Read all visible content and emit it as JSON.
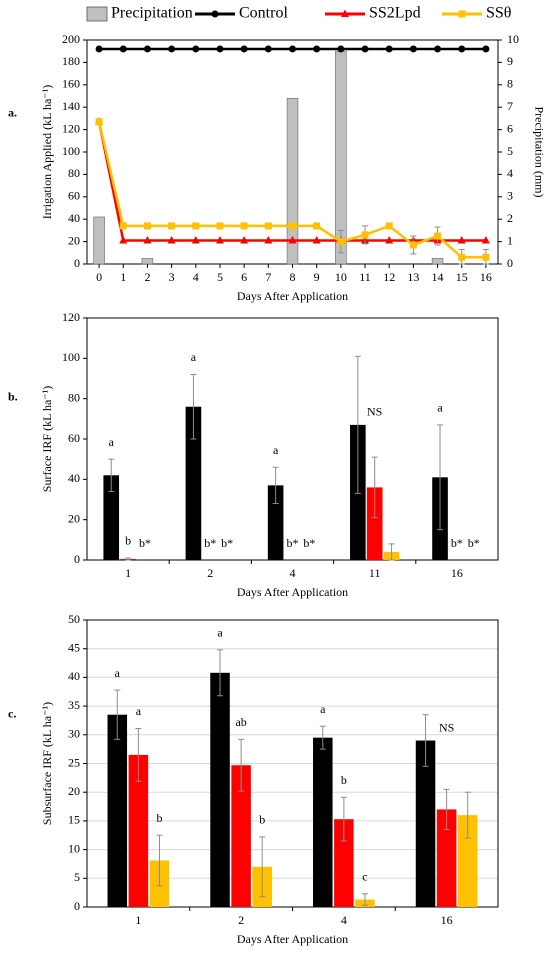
{
  "chart_data": [
    {
      "type": "line",
      "panel_label": "a.",
      "ylabel": "Irrigation Applied (kL ha⁻¹)",
      "y2label": "Precipitation (mm)",
      "xlabel": "Days After Application",
      "categories": [
        0,
        1,
        2,
        3,
        4,
        5,
        6,
        7,
        8,
        9,
        10,
        11,
        12,
        13,
        14,
        15,
        16
      ],
      "ylim": [
        0,
        200
      ],
      "yticks": [
        0,
        20,
        40,
        60,
        80,
        100,
        120,
        140,
        160,
        180,
        200
      ],
      "y2lim": [
        0,
        10
      ],
      "y2ticks": [
        0,
        1,
        2,
        3,
        4,
        5,
        6,
        7,
        8,
        9,
        10
      ],
      "series": [
        {
          "name": "Precipitation",
          "type": "bar",
          "axis": "y2",
          "color": "#bfbfbf",
          "values": [
            2.1,
            0,
            0.25,
            0,
            0,
            0,
            0,
            0,
            7.4,
            0,
            9.5,
            0,
            0,
            0,
            0.25,
            0,
            0
          ]
        },
        {
          "name": "Control",
          "type": "line",
          "marker": "circle",
          "color": "#000000",
          "values": [
            192,
            192,
            192,
            192,
            192,
            192,
            192,
            192,
            192,
            192,
            192,
            192,
            192,
            192,
            192,
            192,
            192
          ]
        },
        {
          "name": "SS2Lpd",
          "type": "line",
          "marker": "triangle",
          "color": "#ff0000",
          "values": [
            127,
            21,
            21,
            21,
            21,
            21,
            21,
            21,
            21,
            21,
            21,
            21,
            21,
            21,
            21,
            21,
            21
          ]
        },
        {
          "name": "SSθ",
          "type": "line",
          "marker": "square",
          "color": "#ffc000",
          "values": [
            127,
            34,
            34,
            34,
            34,
            34,
            34,
            34,
            34,
            34,
            20,
            26,
            34,
            17,
            25,
            6,
            6
          ],
          "errors": [
            null,
            null,
            null,
            null,
            null,
            null,
            null,
            null,
            null,
            null,
            10,
            8,
            null,
            8,
            8,
            7,
            7
          ]
        }
      ]
    },
    {
      "type": "bar",
      "panel_label": "b.",
      "ylabel": "Surface IRF (kL ha⁻¹)",
      "xlabel": "Days After Application",
      "categories": [
        1,
        2,
        4,
        11,
        16
      ],
      "ylim": [
        0,
        120
      ],
      "yticks": [
        0,
        20,
        40,
        60,
        80,
        100,
        120
      ],
      "grid": false,
      "category_labels": [
        null,
        null,
        null,
        "NS",
        null
      ],
      "series": [
        {
          "color": "#000000",
          "values": [
            42,
            76,
            37,
            67,
            41
          ],
          "errors": [
            8,
            16,
            9,
            34,
            26
          ],
          "labels": [
            "a",
            "a",
            "a",
            null,
            "a"
          ]
        },
        {
          "color": "#ff0000",
          "values": [
            0.5,
            0,
            0,
            36,
            0
          ],
          "errors": [
            0.5,
            0,
            0,
            15,
            0
          ],
          "labels": [
            "b",
            "b*",
            "b*",
            null,
            "b*"
          ]
        },
        {
          "color": "#ffc000",
          "values": [
            0,
            0,
            0,
            4,
            0
          ],
          "errors": [
            0,
            0,
            0,
            4,
            0
          ],
          "labels": [
            "b*",
            "b*",
            "b*",
            null,
            "b*"
          ]
        }
      ]
    },
    {
      "type": "bar",
      "panel_label": "c.",
      "ylabel": "Subsurface IRF (kL ha⁻¹)",
      "xlabel": "Days After Application",
      "categories": [
        1,
        2,
        4,
        16
      ],
      "ylim": [
        0,
        50
      ],
      "yticks": [
        0,
        5,
        10,
        15,
        20,
        25,
        30,
        35,
        40,
        45,
        50
      ],
      "grid": true,
      "category_labels": [
        null,
        null,
        null,
        "NS"
      ],
      "series": [
        {
          "color": "#000000",
          "values": [
            33.5,
            40.8,
            29.5,
            29
          ],
          "errors": [
            4.3,
            4,
            2,
            4.5
          ],
          "labels": [
            "a",
            "a",
            "a",
            null
          ]
        },
        {
          "color": "#ff0000",
          "values": [
            26.5,
            24.7,
            15.3,
            17
          ],
          "errors": [
            4.6,
            4.5,
            3.8,
            3.5
          ],
          "labels": [
            "a",
            "ab",
            "b",
            null
          ]
        },
        {
          "color": "#ffc000",
          "values": [
            8.1,
            7,
            1.3,
            16
          ],
          "errors": [
            4.4,
            5.2,
            1,
            4
          ],
          "labels": [
            "b",
            "b",
            "c",
            null
          ]
        }
      ]
    }
  ]
}
